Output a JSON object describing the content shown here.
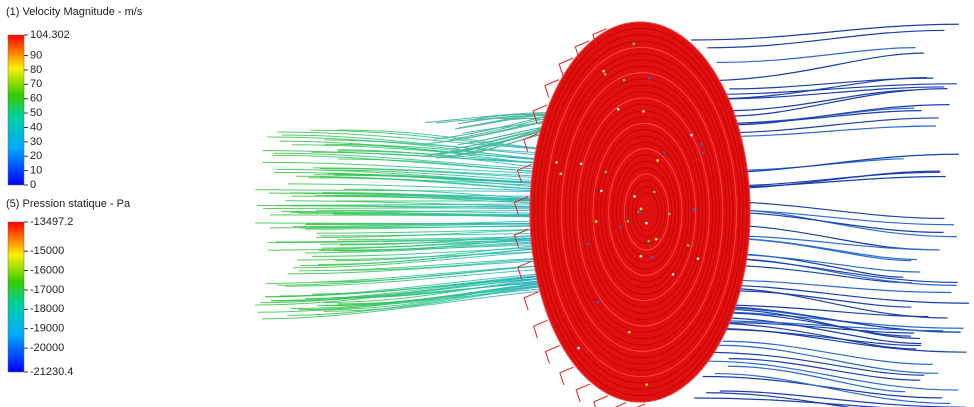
{
  "legends": [
    {
      "title": "(1) Velocity Magnitude - m/s",
      "ticks": [
        104.302,
        90,
        80,
        70,
        60,
        50,
        40,
        30,
        20,
        10,
        0
      ]
    },
    {
      "title": "(5) Pression statique - Pa",
      "ticks": [
        -13497.2,
        -15000,
        -16000,
        -17000,
        -18000,
        -19000,
        -20000,
        -21230.4
      ]
    }
  ]
}
